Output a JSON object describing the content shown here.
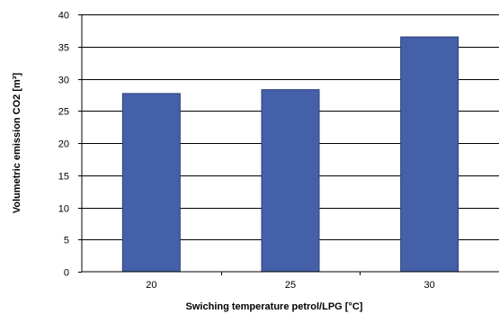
{
  "chart_data": {
    "type": "bar",
    "categories": [
      "20",
      "25",
      "30"
    ],
    "values": [
      27.7,
      28.3,
      36.5
    ],
    "title": "",
    "xlabel": "Swiching temperature petrol/LPG [°C]",
    "ylabel": "Volumetric emission CO2 [m³]",
    "ylim": [
      0,
      40
    ],
    "yticks": [
      0,
      5,
      10,
      15,
      20,
      25,
      30,
      35,
      40
    ],
    "grid": true,
    "legend": "none",
    "bar_color": "#4460A8",
    "bar_edge_color": "#2A3F7A",
    "grid_color": "#000000"
  }
}
